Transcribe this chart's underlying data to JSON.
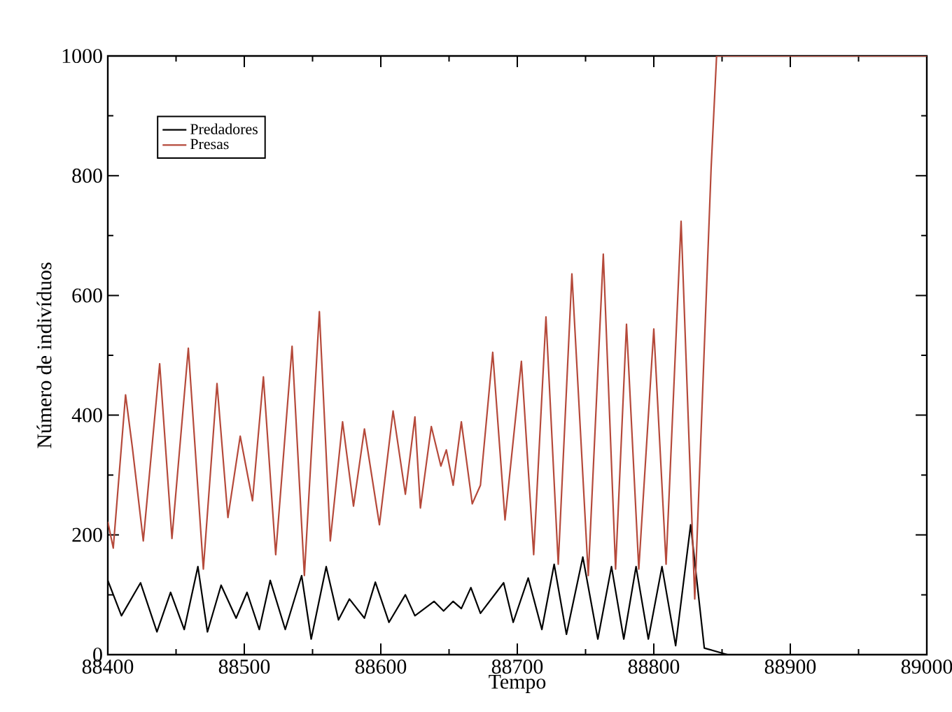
{
  "chart_data": {
    "type": "line",
    "xlabel": "Tempo",
    "ylabel": "Número de indivíduos",
    "xlim": [
      88400,
      89000
    ],
    "xticks": [
      88400,
      88500,
      88600,
      88700,
      88800,
      88900,
      89000
    ],
    "ylim": [
      0,
      1000
    ],
    "yticks": [
      0,
      200,
      400,
      600,
      800,
      1000
    ],
    "legend": "top left",
    "grid": false,
    "marker": "none",
    "line_style": "solid",
    "series": [
      {
        "name": "Predadores",
        "color": "#000000",
        "x": [
          88400,
          88410,
          88424,
          88436,
          88446,
          88456,
          88466,
          88473,
          88483,
          88494,
          88502,
          88511,
          88519,
          88530,
          88542,
          88549,
          88560,
          88569,
          88577,
          88588,
          88596,
          88606,
          88618,
          88625,
          88639,
          88646,
          88653,
          88659,
          88666,
          88673,
          88690,
          88697,
          88708,
          88718,
          88727,
          88736,
          88748,
          88759,
          88769,
          88778,
          88787,
          88796,
          88806,
          88816,
          88827,
          88837,
          88854,
          89000
        ],
        "values": [
          124,
          65,
          120,
          38,
          104,
          42,
          147,
          38,
          116,
          61,
          104,
          42,
          124,
          42,
          132,
          26,
          147,
          58,
          93,
          61,
          121,
          54,
          100,
          65,
          89,
          73,
          89,
          77,
          112,
          69,
          120,
          54,
          128,
          42,
          151,
          34,
          163,
          26,
          147,
          26,
          147,
          26,
          147,
          15,
          217,
          11,
          0,
          0
        ]
      },
      {
        "name": "Presas",
        "color": "#b5493a",
        "x": [
          88400,
          88404,
          88413,
          88418,
          88426,
          88438,
          88447,
          88459,
          88470,
          88480,
          88488,
          88497,
          88506,
          88514,
          88523,
          88535,
          88544,
          88555,
          88563,
          88572,
          88580,
          88588,
          88599,
          88609,
          88618,
          88625,
          88629,
          88637,
          88644,
          88648,
          88653,
          88659,
          88667,
          88673,
          88682,
          88691,
          88703,
          88712,
          88721,
          88730,
          88740,
          88752,
          88763,
          88772,
          88780,
          88789,
          88800,
          88809,
          88820,
          88830,
          88842,
          88846,
          89000
        ],
        "values": [
          222,
          178,
          434,
          346,
          190,
          486,
          194,
          512,
          143,
          453,
          229,
          365,
          257,
          464,
          167,
          515,
          132,
          573,
          190,
          389,
          248,
          377,
          217,
          407,
          268,
          397,
          245,
          381,
          315,
          342,
          283,
          389,
          252,
          283,
          505,
          225,
          490,
          167,
          564,
          151,
          636,
          132,
          669,
          143,
          552,
          143,
          544,
          151,
          724,
          93,
          813,
          1000,
          1000
        ]
      }
    ]
  }
}
